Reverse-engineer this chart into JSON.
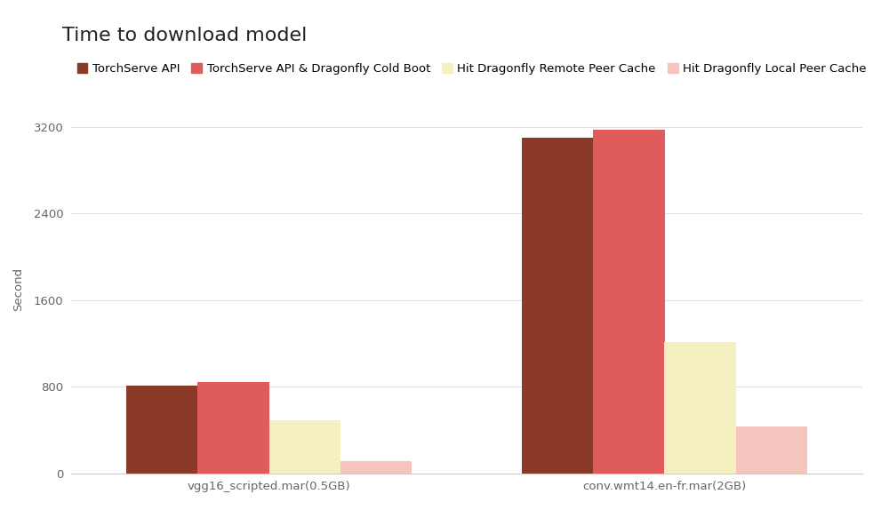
{
  "title": "Time to download model",
  "ylabel": "Second",
  "categories": [
    "vgg16_scripted.mar(0.5GB)",
    "conv.wmt14.en-fr.mar(2GB)"
  ],
  "series": [
    {
      "label": "TorchServe API",
      "color": "#8B3A2A",
      "values": [
        810,
        3100
      ]
    },
    {
      "label": "TorchServe API & Dragonfly Cold Boot",
      "color": "#E05C5C",
      "values": [
        840,
        3175
      ]
    },
    {
      "label": "Hit Dragonfly Remote Peer Cache",
      "color": "#F5F0C0",
      "values": [
        490,
        1210
      ]
    },
    {
      "label": "Hit Dragonfly Local Peer Cache",
      "color": "#F5C4BC",
      "values": [
        110,
        430
      ]
    }
  ],
  "ylim": [
    0,
    3400
  ],
  "yticks": [
    0,
    800,
    1600,
    2400,
    3200
  ],
  "background_color": "#ffffff",
  "grid_color": "#e0e0e0",
  "title_fontsize": 16,
  "legend_fontsize": 9.5,
  "axis_fontsize": 9.5,
  "bar_width": 0.09,
  "group_positions": [
    0.25,
    0.75
  ]
}
